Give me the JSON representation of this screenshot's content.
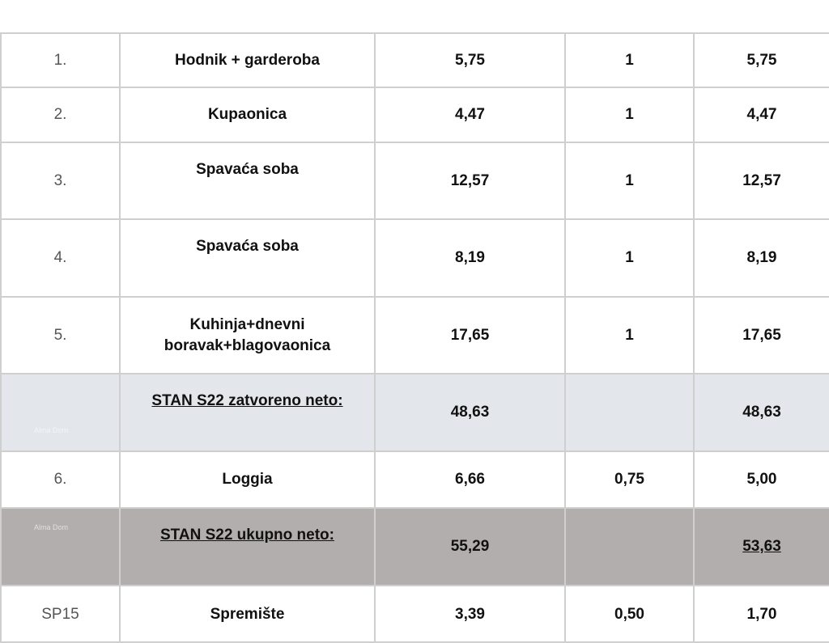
{
  "watermark": "Alma Dom",
  "colors": {
    "subtotal_bg": "#e3e7ec",
    "total_bg": "#b2aeae",
    "border": "#cfcfcf"
  },
  "rows": [
    {
      "no": "1.",
      "name": "Hodnik + garderoba",
      "area": "5,75",
      "coef": "1",
      "result": "5,75"
    },
    {
      "no": "2.",
      "name": "Kupaonica",
      "area": "4,47",
      "coef": "1",
      "result": "4,47"
    },
    {
      "no": "3.",
      "name": "Spavaća soba",
      "area": "12,57",
      "coef": "1",
      "result": "12,57"
    },
    {
      "no": "4.",
      "name": "Spavaća soba",
      "area": "8,19",
      "coef": "1",
      "result": "8,19"
    },
    {
      "no": "5.",
      "name": "Kuhinja+dnevni boravak+blagovaonica",
      "area": "17,65",
      "coef": "1",
      "result": "17,65"
    },
    {
      "no": "",
      "name": "STAN S22 zatvoreno neto:",
      "area": "48,63",
      "coef": "",
      "result": "48,63"
    },
    {
      "no": "6.",
      "name": "Loggia",
      "area": "6,66",
      "coef": "0,75",
      "result": "5,00"
    },
    {
      "no": "",
      "name": "STAN S22 ukupno neto:",
      "area": "55,29",
      "coef": "",
      "result": "53,63"
    },
    {
      "no": "SP15",
      "name": "Spremište",
      "area": "3,39",
      "coef": "0,50",
      "result": "1,70"
    }
  ]
}
